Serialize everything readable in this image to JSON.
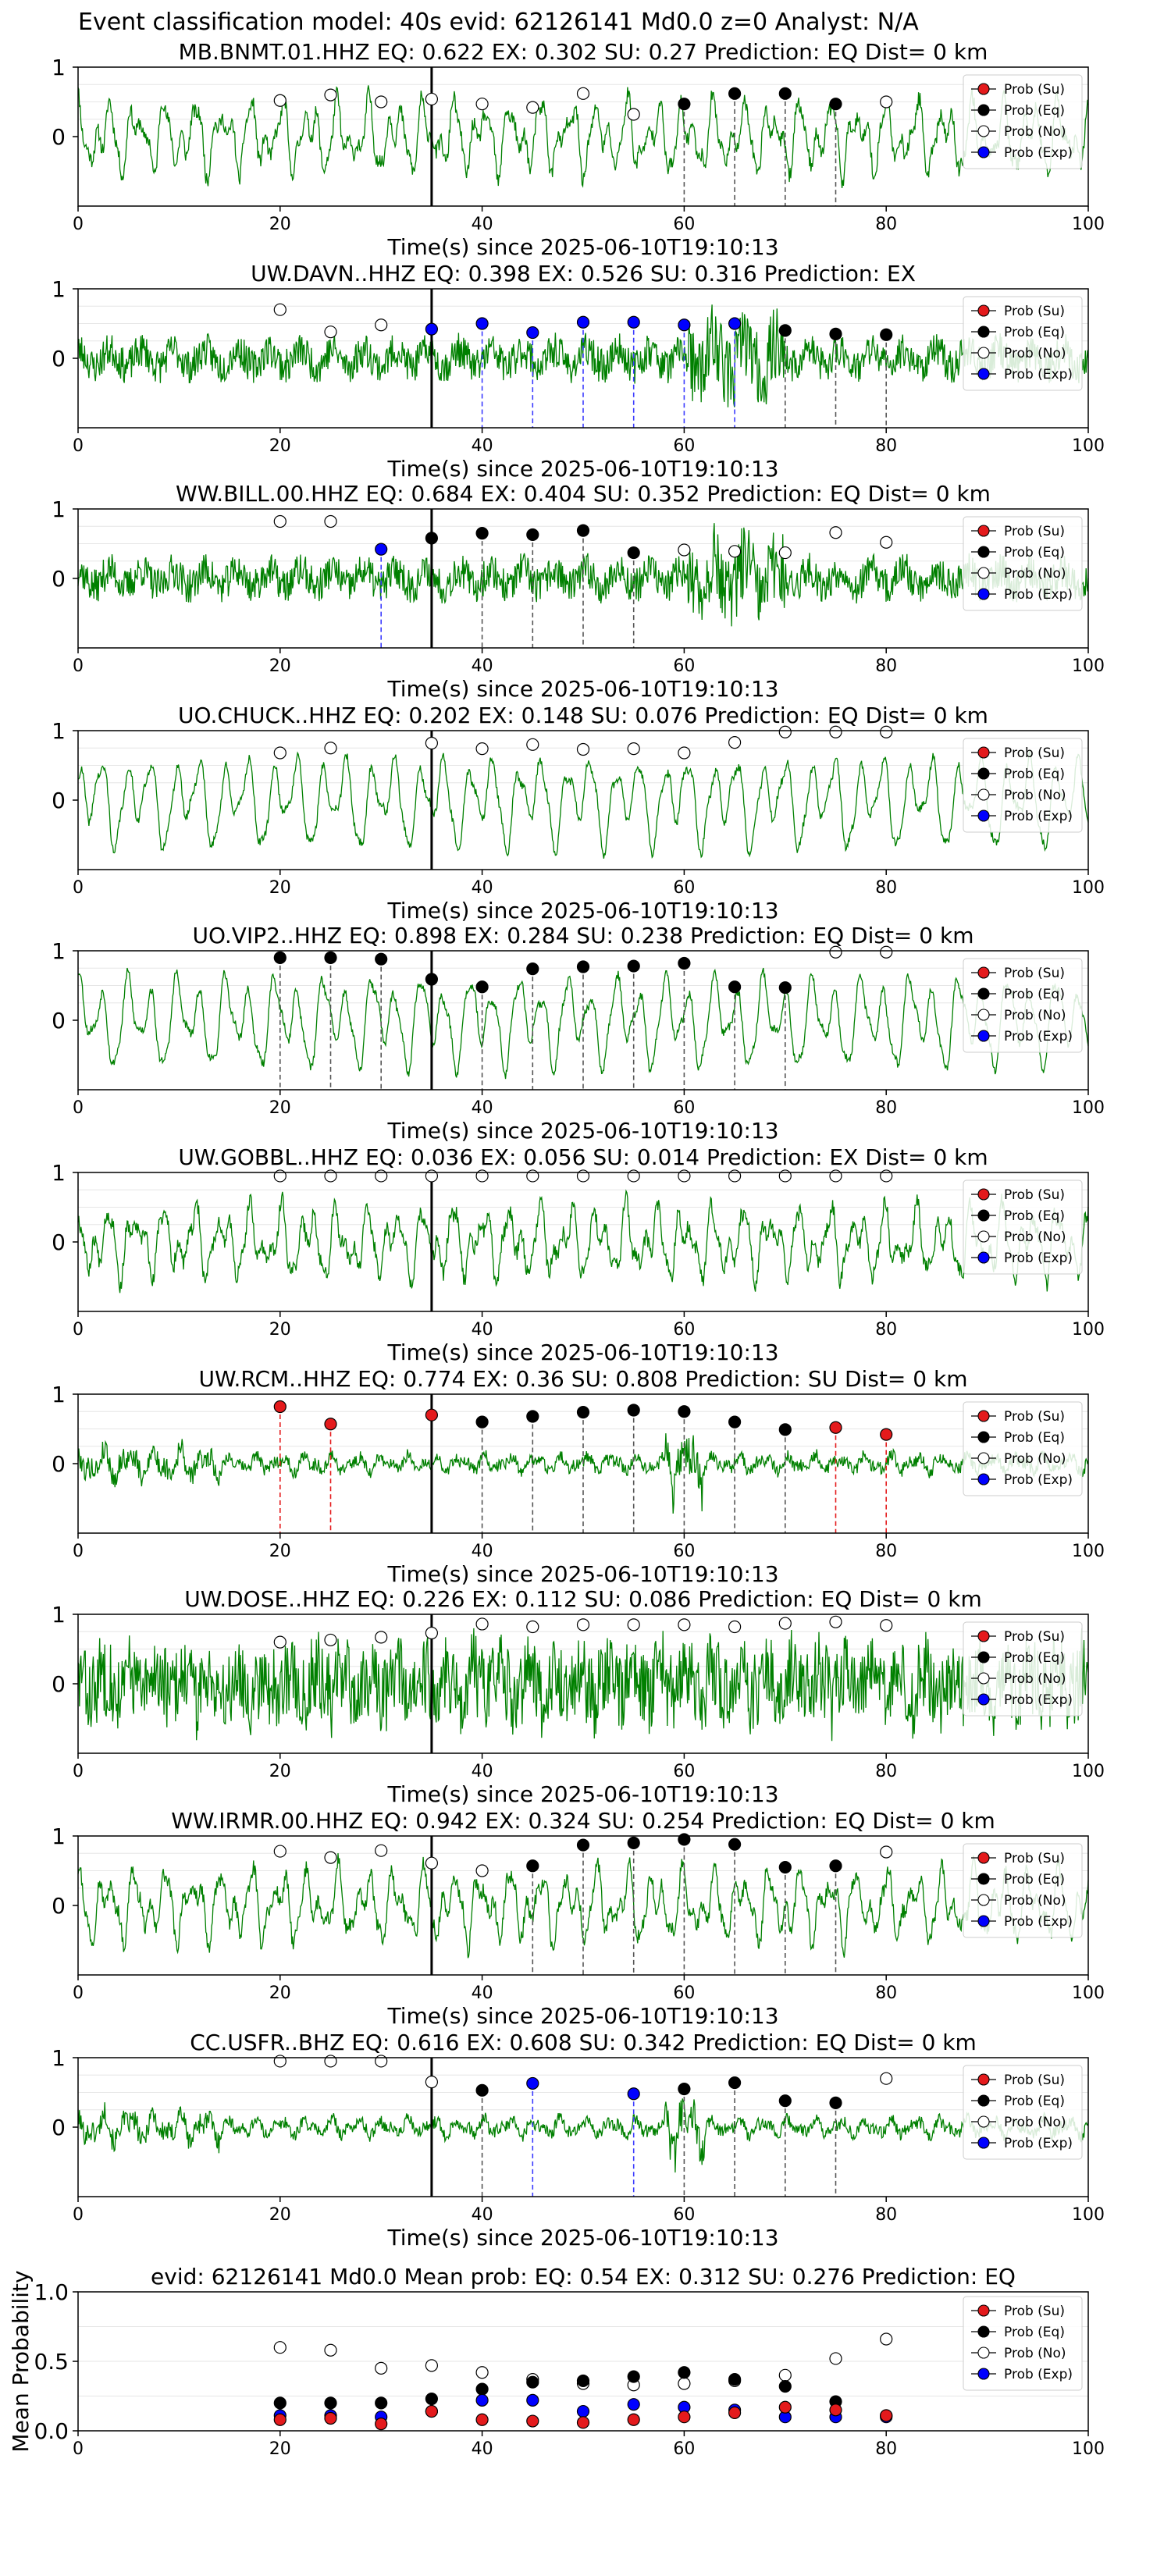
{
  "figure_title": "Event classification model: 40s evid: 62126141 Md0.0 z=0 Analyst: N/A",
  "legend_labels": [
    "Prob (Su)",
    "Prob (Eq)",
    "Prob (No)",
    "Prob (Exp)"
  ],
  "colors": {
    "waveform": "#008000",
    "su": "#e41a1c",
    "eq": "#000000",
    "no": "#ffffff",
    "exp": "#0000ff",
    "arrival_line": "#000000",
    "eq_line": "#555555",
    "exp_line": "#3b3bff",
    "su_line": "#e41a1c"
  },
  "chart_data": [
    {
      "type": "line",
      "title": "MB.BNMT.01.HHZ   EQ: 0.622  EX: 0.302  SU: 0.27   Prediction: EQ    Dist= 0 km",
      "xlabel": "Time(s) since 2025-06-10T19:10:13",
      "xlim": [
        0,
        100
      ],
      "ylim": [
        -1,
        1
      ],
      "xticks": [
        0,
        20,
        40,
        60,
        80,
        100
      ],
      "yticks": [
        0,
        1
      ],
      "arrival_time": 35,
      "noise": "smooth",
      "seed": 11,
      "points": [
        {
          "t": 20,
          "y": 0.52,
          "cls": "No"
        },
        {
          "t": 25,
          "y": 0.6,
          "cls": "No"
        },
        {
          "t": 30,
          "y": 0.5,
          "cls": "No"
        },
        {
          "t": 35,
          "y": 0.54,
          "cls": "No"
        },
        {
          "t": 40,
          "y": 0.47,
          "cls": "No"
        },
        {
          "t": 45,
          "y": 0.42,
          "cls": "No"
        },
        {
          "t": 50,
          "y": 0.62,
          "cls": "No"
        },
        {
          "t": 55,
          "y": 0.32,
          "cls": "No"
        },
        {
          "t": 60,
          "y": 0.47,
          "cls": "Eq"
        },
        {
          "t": 65,
          "y": 0.62,
          "cls": "Eq"
        },
        {
          "t": 70,
          "y": 0.62,
          "cls": "Eq"
        },
        {
          "t": 75,
          "y": 0.47,
          "cls": "Eq"
        },
        {
          "t": 80,
          "y": 0.5,
          "cls": "No"
        }
      ]
    },
    {
      "type": "line",
      "title": "UW.DAVN..HHZ   EQ: 0.398  EX: 0.526  SU: 0.316   Prediction: EX",
      "xlabel": "Time(s) since 2025-06-10T19:10:13",
      "xlim": [
        0,
        100
      ],
      "ylim": [
        -1,
        1
      ],
      "xticks": [
        0,
        20,
        40,
        60,
        80,
        100
      ],
      "yticks": [
        0,
        1
      ],
      "arrival_time": 35,
      "noise": "spiky",
      "seed": 23,
      "points": [
        {
          "t": 20,
          "y": 0.7,
          "cls": "No"
        },
        {
          "t": 25,
          "y": 0.38,
          "cls": "No"
        },
        {
          "t": 30,
          "y": 0.48,
          "cls": "No"
        },
        {
          "t": 35,
          "y": 0.42,
          "cls": "Exp"
        },
        {
          "t": 40,
          "y": 0.5,
          "cls": "Exp"
        },
        {
          "t": 45,
          "y": 0.37,
          "cls": "Exp"
        },
        {
          "t": 50,
          "y": 0.52,
          "cls": "Exp"
        },
        {
          "t": 55,
          "y": 0.52,
          "cls": "Exp"
        },
        {
          "t": 60,
          "y": 0.48,
          "cls": "Exp"
        },
        {
          "t": 65,
          "y": 0.5,
          "cls": "Exp"
        },
        {
          "t": 70,
          "y": 0.4,
          "cls": "Eq"
        },
        {
          "t": 75,
          "y": 0.35,
          "cls": "Eq"
        },
        {
          "t": 80,
          "y": 0.34,
          "cls": "Eq"
        }
      ]
    },
    {
      "type": "line",
      "title": "WW.BILL.00.HHZ   EQ: 0.684  EX: 0.404  SU: 0.352   Prediction: EQ    Dist= 0 km",
      "xlabel": "Time(s) since 2025-06-10T19:10:13",
      "xlim": [
        0,
        100
      ],
      "ylim": [
        -1,
        1
      ],
      "xticks": [
        0,
        20,
        40,
        60,
        80,
        100
      ],
      "yticks": [
        0,
        1
      ],
      "arrival_time": 35,
      "noise": "spiky",
      "seed": 37,
      "points": [
        {
          "t": 20,
          "y": 0.82,
          "cls": "No"
        },
        {
          "t": 25,
          "y": 0.82,
          "cls": "No"
        },
        {
          "t": 30,
          "y": 0.42,
          "cls": "Exp"
        },
        {
          "t": 35,
          "y": 0.58,
          "cls": "Eq"
        },
        {
          "t": 40,
          "y": 0.65,
          "cls": "Eq"
        },
        {
          "t": 45,
          "y": 0.63,
          "cls": "Eq"
        },
        {
          "t": 50,
          "y": 0.69,
          "cls": "Eq"
        },
        {
          "t": 55,
          "y": 0.37,
          "cls": "Eq"
        },
        {
          "t": 60,
          "y": 0.41,
          "cls": "No"
        },
        {
          "t": 65,
          "y": 0.39,
          "cls": "No"
        },
        {
          "t": 70,
          "y": 0.37,
          "cls": "No"
        },
        {
          "t": 75,
          "y": 0.66,
          "cls": "No"
        },
        {
          "t": 80,
          "y": 0.52,
          "cls": "No"
        }
      ]
    },
    {
      "type": "line",
      "title": "UO.CHUCK..HHZ   EQ: 0.202  EX: 0.148  SU: 0.076   Prediction: EQ    Dist= 0 km",
      "xlabel": "Time(s) since 2025-06-10T19:10:13",
      "xlim": [
        0,
        100
      ],
      "ylim": [
        -1,
        1
      ],
      "xticks": [
        0,
        20,
        40,
        60,
        80,
        100
      ],
      "yticks": [
        0,
        1
      ],
      "arrival_time": 35,
      "noise": "wave",
      "seed": 41,
      "points": [
        {
          "t": 20,
          "y": 0.68,
          "cls": "No"
        },
        {
          "t": 25,
          "y": 0.75,
          "cls": "No"
        },
        {
          "t": 35,
          "y": 0.82,
          "cls": "No"
        },
        {
          "t": 40,
          "y": 0.74,
          "cls": "No"
        },
        {
          "t": 45,
          "y": 0.8,
          "cls": "No"
        },
        {
          "t": 50,
          "y": 0.73,
          "cls": "No"
        },
        {
          "t": 55,
          "y": 0.74,
          "cls": "No"
        },
        {
          "t": 60,
          "y": 0.68,
          "cls": "No"
        },
        {
          "t": 65,
          "y": 0.83,
          "cls": "No"
        },
        {
          "t": 70,
          "y": 0.98,
          "cls": "No"
        },
        {
          "t": 75,
          "y": 0.98,
          "cls": "No"
        },
        {
          "t": 80,
          "y": 0.98,
          "cls": "No"
        }
      ]
    },
    {
      "type": "line",
      "title": "UO.VIP2..HHZ   EQ: 0.898  EX: 0.284  SU: 0.238   Prediction: EQ    Dist= 0 km",
      "xlabel": "Time(s) since 2025-06-10T19:10:13",
      "xlim": [
        0,
        100
      ],
      "ylim": [
        -1,
        1
      ],
      "xticks": [
        0,
        20,
        40,
        60,
        80,
        100
      ],
      "yticks": [
        0,
        1
      ],
      "arrival_time": 35,
      "noise": "wave",
      "seed": 53,
      "points": [
        {
          "t": 20,
          "y": 0.9,
          "cls": "Eq"
        },
        {
          "t": 25,
          "y": 0.9,
          "cls": "Eq"
        },
        {
          "t": 30,
          "y": 0.88,
          "cls": "Eq"
        },
        {
          "t": 35,
          "y": 0.59,
          "cls": "Eq"
        },
        {
          "t": 40,
          "y": 0.48,
          "cls": "Eq"
        },
        {
          "t": 45,
          "y": 0.74,
          "cls": "Eq"
        },
        {
          "t": 50,
          "y": 0.77,
          "cls": "Eq"
        },
        {
          "t": 55,
          "y": 0.78,
          "cls": "Eq"
        },
        {
          "t": 60,
          "y": 0.82,
          "cls": "Eq"
        },
        {
          "t": 65,
          "y": 0.48,
          "cls": "Eq"
        },
        {
          "t": 70,
          "y": 0.47,
          "cls": "Eq"
        },
        {
          "t": 75,
          "y": 0.98,
          "cls": "No"
        },
        {
          "t": 80,
          "y": 0.98,
          "cls": "No"
        }
      ]
    },
    {
      "type": "line",
      "title": "UW.GOBBL..HHZ   EQ: 0.036  EX: 0.056  SU: 0.014   Prediction: EX    Dist= 0 km",
      "xlabel": "Time(s) since 2025-06-10T19:10:13",
      "xlim": [
        0,
        100
      ],
      "ylim": [
        -1,
        1
      ],
      "xticks": [
        0,
        20,
        40,
        60,
        80,
        100
      ],
      "yticks": [
        0,
        1
      ],
      "arrival_time": 35,
      "noise": "smooth",
      "seed": 67,
      "points": [
        {
          "t": 20,
          "y": 0.95,
          "cls": "No"
        },
        {
          "t": 25,
          "y": 0.95,
          "cls": "No"
        },
        {
          "t": 30,
          "y": 0.95,
          "cls": "No"
        },
        {
          "t": 35,
          "y": 0.95,
          "cls": "No"
        },
        {
          "t": 40,
          "y": 0.95,
          "cls": "No"
        },
        {
          "t": 45,
          "y": 0.95,
          "cls": "No"
        },
        {
          "t": 50,
          "y": 0.95,
          "cls": "No"
        },
        {
          "t": 55,
          "y": 0.95,
          "cls": "No"
        },
        {
          "t": 60,
          "y": 0.95,
          "cls": "No"
        },
        {
          "t": 65,
          "y": 0.95,
          "cls": "No"
        },
        {
          "t": 70,
          "y": 0.95,
          "cls": "No"
        },
        {
          "t": 75,
          "y": 0.95,
          "cls": "No"
        },
        {
          "t": 80,
          "y": 0.95,
          "cls": "No"
        }
      ]
    },
    {
      "type": "line",
      "title": "UW.RCM..HHZ   EQ: 0.774  EX: 0.36  SU: 0.808   Prediction: SU    Dist= 0 km",
      "xlabel": "Time(s) since 2025-06-10T19:10:13",
      "xlim": [
        0,
        100
      ],
      "ylim": [
        -1,
        1
      ],
      "xticks": [
        0,
        20,
        40,
        60,
        80,
        100
      ],
      "yticks": [
        0,
        1
      ],
      "arrival_time": 35,
      "noise": "quiet",
      "seed": 79,
      "points": [
        {
          "t": 20,
          "y": 0.82,
          "cls": "Su"
        },
        {
          "t": 25,
          "y": 0.57,
          "cls": "Su"
        },
        {
          "t": 35,
          "y": 0.7,
          "cls": "Su"
        },
        {
          "t": 40,
          "y": 0.6,
          "cls": "Eq"
        },
        {
          "t": 45,
          "y": 0.68,
          "cls": "Eq"
        },
        {
          "t": 50,
          "y": 0.74,
          "cls": "Eq"
        },
        {
          "t": 55,
          "y": 0.77,
          "cls": "Eq"
        },
        {
          "t": 60,
          "y": 0.75,
          "cls": "Eq"
        },
        {
          "t": 65,
          "y": 0.6,
          "cls": "Eq"
        },
        {
          "t": 70,
          "y": 0.49,
          "cls": "Eq"
        },
        {
          "t": 75,
          "y": 0.52,
          "cls": "Su"
        },
        {
          "t": 80,
          "y": 0.42,
          "cls": "Su"
        }
      ]
    },
    {
      "type": "line",
      "title": "UW.DOSE..HHZ   EQ: 0.226  EX: 0.112  SU: 0.086   Prediction: EQ    Dist= 0 km",
      "xlabel": "Time(s) since 2025-06-10T19:10:13",
      "xlim": [
        0,
        100
      ],
      "ylim": [
        -1,
        1
      ],
      "xticks": [
        0,
        20,
        40,
        60,
        80,
        100
      ],
      "yticks": [
        0,
        1
      ],
      "arrival_time": 35,
      "noise": "heavy",
      "seed": 83,
      "points": [
        {
          "t": 20,
          "y": 0.6,
          "cls": "No"
        },
        {
          "t": 25,
          "y": 0.63,
          "cls": "No"
        },
        {
          "t": 30,
          "y": 0.67,
          "cls": "No"
        },
        {
          "t": 35,
          "y": 0.73,
          "cls": "No"
        },
        {
          "t": 40,
          "y": 0.86,
          "cls": "No"
        },
        {
          "t": 45,
          "y": 0.82,
          "cls": "No"
        },
        {
          "t": 50,
          "y": 0.85,
          "cls": "No"
        },
        {
          "t": 55,
          "y": 0.85,
          "cls": "No"
        },
        {
          "t": 60,
          "y": 0.85,
          "cls": "No"
        },
        {
          "t": 65,
          "y": 0.82,
          "cls": "No"
        },
        {
          "t": 70,
          "y": 0.87,
          "cls": "No"
        },
        {
          "t": 75,
          "y": 0.89,
          "cls": "No"
        },
        {
          "t": 80,
          "y": 0.84,
          "cls": "No"
        }
      ]
    },
    {
      "type": "line",
      "title": "WW.IRMR.00.HHZ   EQ: 0.942  EX: 0.324  SU: 0.254   Prediction: EQ    Dist= 0 km",
      "xlabel": "Time(s) since 2025-06-10T19:10:13",
      "xlim": [
        0,
        100
      ],
      "ylim": [
        -1,
        1
      ],
      "xticks": [
        0,
        20,
        40,
        60,
        80,
        100
      ],
      "yticks": [
        0,
        1
      ],
      "arrival_time": 35,
      "noise": "smooth",
      "seed": 97,
      "points": [
        {
          "t": 20,
          "y": 0.78,
          "cls": "No"
        },
        {
          "t": 25,
          "y": 0.69,
          "cls": "No"
        },
        {
          "t": 30,
          "y": 0.79,
          "cls": "No"
        },
        {
          "t": 35,
          "y": 0.61,
          "cls": "No"
        },
        {
          "t": 40,
          "y": 0.5,
          "cls": "No"
        },
        {
          "t": 45,
          "y": 0.57,
          "cls": "Eq"
        },
        {
          "t": 50,
          "y": 0.87,
          "cls": "Eq"
        },
        {
          "t": 55,
          "y": 0.9,
          "cls": "Eq"
        },
        {
          "t": 60,
          "y": 0.95,
          "cls": "Eq"
        },
        {
          "t": 65,
          "y": 0.88,
          "cls": "Eq"
        },
        {
          "t": 70,
          "y": 0.55,
          "cls": "Eq"
        },
        {
          "t": 75,
          "y": 0.57,
          "cls": "Eq"
        },
        {
          "t": 80,
          "y": 0.77,
          "cls": "No"
        }
      ]
    },
    {
      "type": "line",
      "title": "CC.USFR..BHZ   EQ: 0.616  EX: 0.608  SU: 0.342   Prediction: EQ    Dist= 0 km",
      "xlabel": "Time(s) since 2025-06-10T19:10:13",
      "xlim": [
        0,
        100
      ],
      "ylim": [
        -1,
        1
      ],
      "xticks": [
        0,
        20,
        40,
        60,
        80,
        100
      ],
      "yticks": [
        0,
        1
      ],
      "arrival_time": 35,
      "noise": "quiet",
      "seed": 101,
      "points": [
        {
          "t": 20,
          "y": 0.95,
          "cls": "No"
        },
        {
          "t": 25,
          "y": 0.95,
          "cls": "No"
        },
        {
          "t": 30,
          "y": 0.95,
          "cls": "No"
        },
        {
          "t": 35,
          "y": 0.65,
          "cls": "No"
        },
        {
          "t": 40,
          "y": 0.53,
          "cls": "Eq"
        },
        {
          "t": 45,
          "y": 0.63,
          "cls": "Exp"
        },
        {
          "t": 55,
          "y": 0.48,
          "cls": "Exp"
        },
        {
          "t": 60,
          "y": 0.55,
          "cls": "Eq"
        },
        {
          "t": 65,
          "y": 0.64,
          "cls": "Eq"
        },
        {
          "t": 70,
          "y": 0.38,
          "cls": "Eq"
        },
        {
          "t": 75,
          "y": 0.35,
          "cls": "Eq"
        },
        {
          "t": 80,
          "y": 0.7,
          "cls": "No"
        }
      ]
    },
    {
      "type": "scatter",
      "title": "evid: 62126141  Md0.0   Mean prob:   EQ: 0.54  EX: 0.312  SU: 0.276   Prediction: EQ",
      "ylabel": "Mean Probability",
      "xlim": [
        0,
        100
      ],
      "ylim": [
        0,
        1
      ],
      "xticks": [
        0,
        20,
        40,
        60,
        80,
        100
      ],
      "yticks": [
        0.0,
        0.5,
        1.0
      ],
      "ytick_labels": [
        "0.0",
        "0.5",
        "1.0"
      ],
      "x": [
        20,
        25,
        30,
        35,
        40,
        45,
        50,
        55,
        60,
        65,
        70,
        75,
        80
      ],
      "series": [
        {
          "name": "Prob (Su)",
          "values": [
            0.08,
            0.09,
            0.05,
            0.14,
            0.08,
            0.07,
            0.06,
            0.08,
            0.1,
            0.13,
            0.17,
            0.15,
            0.11
          ]
        },
        {
          "name": "Prob (Eq)",
          "values": [
            0.2,
            0.2,
            0.2,
            0.23,
            0.3,
            0.35,
            0.36,
            0.39,
            0.42,
            0.37,
            0.32,
            0.21,
            0.11
          ]
        },
        {
          "name": "Prob (No)",
          "values": [
            0.6,
            0.58,
            0.45,
            0.47,
            0.42,
            0.37,
            0.34,
            0.33,
            0.34,
            0.36,
            0.4,
            0.52,
            0.66
          ]
        },
        {
          "name": "Prob (Exp)",
          "values": [
            0.11,
            0.11,
            0.1,
            0.14,
            0.22,
            0.22,
            0.14,
            0.19,
            0.17,
            0.15,
            0.1,
            0.1,
            0.1
          ]
        }
      ]
    }
  ]
}
